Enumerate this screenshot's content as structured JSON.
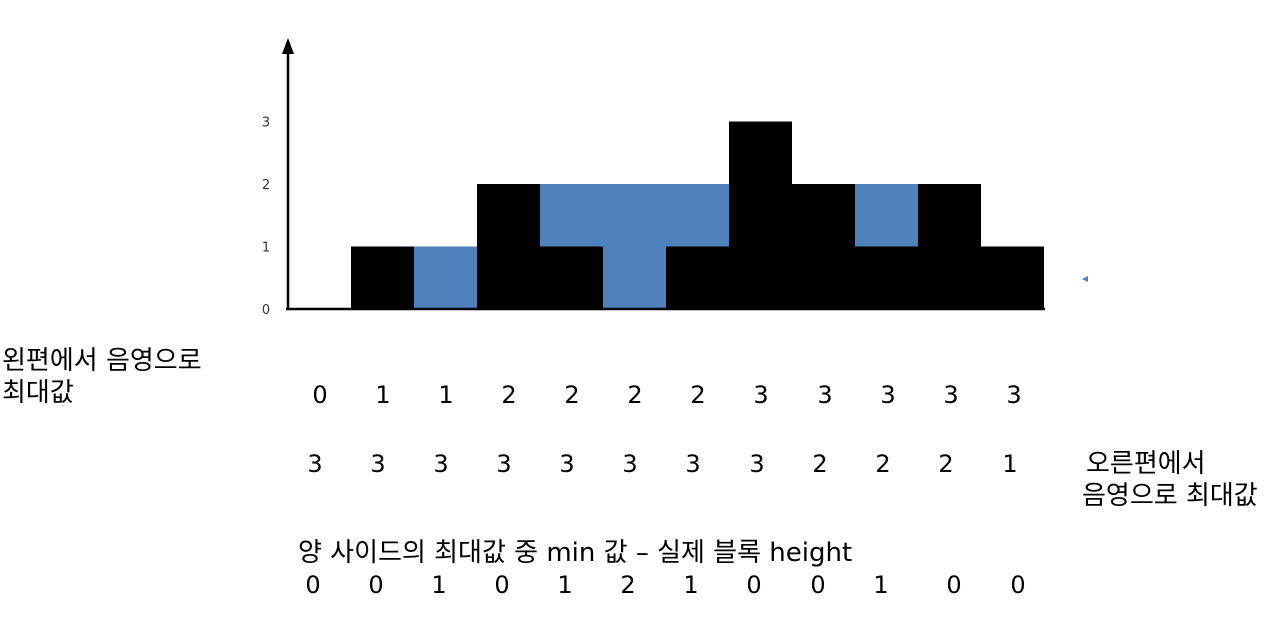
{
  "chart_data": {
    "type": "bar",
    "y_ticks": [
      "0",
      "1",
      "2",
      "3"
    ],
    "block_heights": [
      0,
      1,
      0,
      2,
      1,
      0,
      1,
      3,
      2,
      1,
      2,
      1
    ],
    "water_levels": [
      0,
      0,
      1,
      0,
      1,
      2,
      1,
      0,
      0,
      1,
      0,
      0
    ],
    "ylim": [
      0,
      3
    ],
    "block_color": "#000000",
    "water_color": "#4f81bd"
  },
  "left_max": {
    "label_line1": "왼편에서 음영으로",
    "label_line2": "최대값",
    "values": [
      "0",
      "1",
      "1",
      "2",
      "2",
      "2",
      "2",
      "3",
      "3",
      "3",
      "3",
      "3"
    ]
  },
  "right_max": {
    "label_line1": "오른편에서",
    "label_line2": "음영으로 최대값",
    "values": [
      "3",
      "3",
      "3",
      "3",
      "3",
      "3",
      "3",
      "3",
      "2",
      "2",
      "2",
      "1"
    ]
  },
  "result": {
    "caption": "양 사이드의 최대값 중 min 값 – 실제 블록 height",
    "values": [
      "0",
      "0",
      "1",
      "0",
      "1",
      "2",
      "1",
      "0",
      "0",
      "1",
      "0",
      "0"
    ]
  }
}
